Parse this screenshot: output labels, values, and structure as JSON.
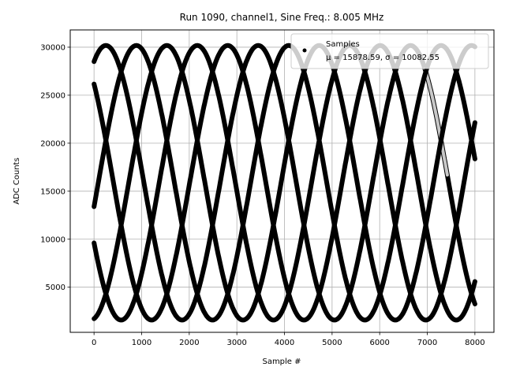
{
  "chart_data": {
    "type": "scatter",
    "title": "Run 1090, channel1, Sine Freq.: 8.005 MHz",
    "xlabel": "Sample #",
    "ylabel": "ADC Counts",
    "xlim": [
      -500,
      8400
    ],
    "ylim": [
      300,
      31800
    ],
    "xticks": [
      0,
      1000,
      2000,
      3000,
      4000,
      5000,
      6000,
      7000,
      8000
    ],
    "yticks": [
      5000,
      10000,
      15000,
      20000,
      25000,
      30000
    ],
    "grid": true,
    "legend": {
      "placement": "top-right",
      "title": "Samples",
      "entry": "μ = 15878.59, σ = 10082.55"
    },
    "series": [
      {
        "name": "Samples",
        "color": "#000000",
        "marker": "dot",
        "model": {
          "mean": 15878.59,
          "amplitude": 14300,
          "period_samples": 3200,
          "phases_deg": [
            62,
            134,
            206,
            278,
            350
          ],
          "x_range": [
            0,
            8000
          ]
        }
      }
    ],
    "highlight_region": {
      "x_range": [
        6950,
        7420
      ],
      "color": "#c8c8c8",
      "note": "lighter gray band near top of curve"
    }
  }
}
